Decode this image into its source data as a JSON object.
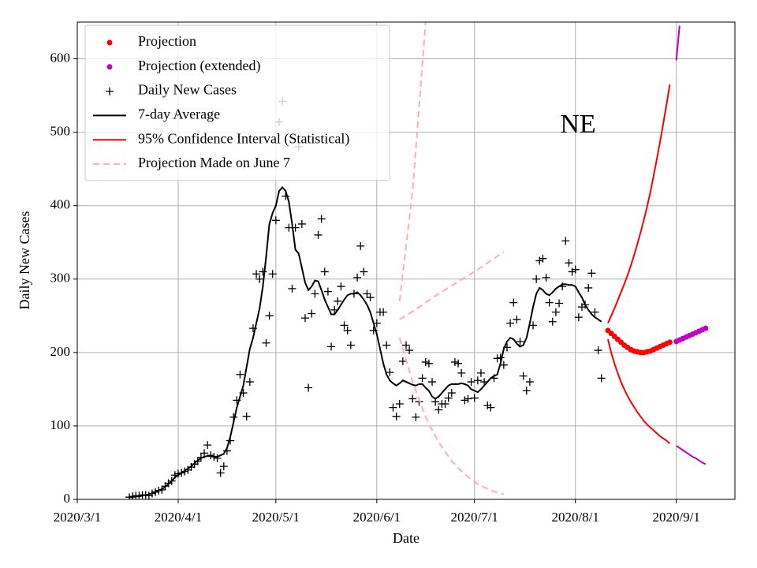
{
  "chart_data": {
    "type": "line",
    "title": "NE",
    "xlabel": "Date",
    "ylabel": "Daily New Cases",
    "xlim": [
      "2020-03-01",
      "2020-09-19"
    ],
    "ylim": [
      0,
      650
    ],
    "xticks": [
      {
        "value": "2020-03-01",
        "label": "2020/3/1"
      },
      {
        "value": "2020-04-01",
        "label": "2020/4/1"
      },
      {
        "value": "2020-05-01",
        "label": "2020/5/1"
      },
      {
        "value": "2020-06-01",
        "label": "2020/6/1"
      },
      {
        "value": "2020-07-01",
        "label": "2020/7/1"
      },
      {
        "value": "2020-08-01",
        "label": "2020/8/1"
      },
      {
        "value": "2020-09-01",
        "label": "2020/9/1"
      }
    ],
    "yticks": [
      0,
      100,
      200,
      300,
      400,
      500,
      600
    ],
    "grid": true,
    "legend": "upper left",
    "x": [
      "2020-03-17",
      "2020-03-18",
      "2020-03-19",
      "2020-03-20",
      "2020-03-21",
      "2020-03-22",
      "2020-03-23",
      "2020-03-24",
      "2020-03-25",
      "2020-03-26",
      "2020-03-27",
      "2020-03-28",
      "2020-03-29",
      "2020-03-30",
      "2020-03-31",
      "2020-04-01",
      "2020-04-02",
      "2020-04-03",
      "2020-04-04",
      "2020-04-05",
      "2020-04-06",
      "2020-04-07",
      "2020-04-08",
      "2020-04-09",
      "2020-04-10",
      "2020-04-11",
      "2020-04-12",
      "2020-04-13",
      "2020-04-14",
      "2020-04-15",
      "2020-04-16",
      "2020-04-17",
      "2020-04-18",
      "2020-04-19",
      "2020-04-20",
      "2020-04-21",
      "2020-04-22",
      "2020-04-23",
      "2020-04-24",
      "2020-04-25",
      "2020-04-26",
      "2020-04-27",
      "2020-04-28",
      "2020-04-29",
      "2020-04-30",
      "2020-05-01",
      "2020-05-02",
      "2020-05-03",
      "2020-05-04",
      "2020-05-05",
      "2020-05-06",
      "2020-05-07",
      "2020-05-08",
      "2020-05-09",
      "2020-05-10",
      "2020-05-11",
      "2020-05-12",
      "2020-05-13",
      "2020-05-14",
      "2020-05-15",
      "2020-05-16",
      "2020-05-17",
      "2020-05-18",
      "2020-05-19",
      "2020-05-20",
      "2020-05-21",
      "2020-05-22",
      "2020-05-23",
      "2020-05-24",
      "2020-05-25",
      "2020-05-26",
      "2020-05-27",
      "2020-05-28",
      "2020-05-29",
      "2020-05-30",
      "2020-05-31",
      "2020-06-01",
      "2020-06-02",
      "2020-06-03",
      "2020-06-04",
      "2020-06-05",
      "2020-06-06",
      "2020-06-07",
      "2020-06-08",
      "2020-06-09",
      "2020-06-10",
      "2020-06-11",
      "2020-06-12",
      "2020-06-13",
      "2020-06-14",
      "2020-06-15",
      "2020-06-16",
      "2020-06-17",
      "2020-06-18",
      "2020-06-19",
      "2020-06-20",
      "2020-06-21",
      "2020-06-22",
      "2020-06-23",
      "2020-06-24",
      "2020-06-25",
      "2020-06-26",
      "2020-06-27",
      "2020-06-28",
      "2020-06-29",
      "2020-06-30",
      "2020-07-01",
      "2020-07-02",
      "2020-07-03",
      "2020-07-04",
      "2020-07-05",
      "2020-07-06",
      "2020-07-07",
      "2020-07-08",
      "2020-07-09",
      "2020-07-10",
      "2020-07-11",
      "2020-07-12",
      "2020-07-13",
      "2020-07-14",
      "2020-07-15",
      "2020-07-16",
      "2020-07-17",
      "2020-07-18",
      "2020-07-19",
      "2020-07-20",
      "2020-07-21",
      "2020-07-22",
      "2020-07-23",
      "2020-07-24",
      "2020-07-25",
      "2020-07-26",
      "2020-07-27",
      "2020-07-28",
      "2020-07-29",
      "2020-07-30",
      "2020-07-31",
      "2020-08-01",
      "2020-08-02",
      "2020-08-03",
      "2020-08-04",
      "2020-08-05",
      "2020-08-06",
      "2020-08-07",
      "2020-08-08",
      "2020-08-09"
    ],
    "series": [
      {
        "name": "Projection",
        "color": "#ff0000",
        "marker": "dot",
        "x": [
          "2020-08-11",
          "2020-08-12",
          "2020-08-13",
          "2020-08-14",
          "2020-08-15",
          "2020-08-16",
          "2020-08-17",
          "2020-08-18",
          "2020-08-19",
          "2020-08-20",
          "2020-08-21",
          "2020-08-22",
          "2020-08-23",
          "2020-08-24",
          "2020-08-25",
          "2020-08-26",
          "2020-08-27",
          "2020-08-28",
          "2020-08-29",
          "2020-08-30"
        ],
        "values": [
          230,
          226,
          222,
          218,
          214,
          210,
          207,
          204,
          202,
          201,
          200,
          200,
          201,
          202,
          204,
          206,
          208,
          210,
          212,
          214
        ]
      },
      {
        "name": "Projection (extended)",
        "color": "#bf00bf",
        "marker": "dot",
        "linestyle": "solid",
        "x": [
          "2020-09-01",
          "2020-09-02",
          "2020-09-03",
          "2020-09-04",
          "2020-09-05",
          "2020-09-06",
          "2020-09-07",
          "2020-09-08",
          "2020-09-09",
          "2020-09-10"
        ],
        "values": [
          215,
          217,
          219,
          221,
          223,
          225,
          227,
          229,
          231,
          233
        ],
        "upper": [
          598,
          645,
          null,
          null,
          null,
          null,
          null,
          null,
          null,
          null
        ],
        "lower": [
          73,
          70,
          67,
          64,
          61,
          58,
          56,
          53,
          50,
          48
        ]
      },
      {
        "name": "Daily New Cases",
        "color": "#000000",
        "marker": "plus",
        "values": [
          3,
          4,
          5,
          5,
          6,
          6,
          5,
          8,
          10,
          12,
          13,
          18,
          22,
          25,
          33,
          35,
          36,
          38,
          40,
          44,
          48,
          52,
          57,
          63,
          74,
          60,
          58,
          56,
          36,
          45,
          66,
          80,
          112,
          135,
          170,
          145,
          113,
          160,
          233,
          307,
          300,
          310,
          213,
          250,
          307,
          380,
          514,
          542,
          413,
          370,
          287,
          370,
          480,
          375,
          247,
          152,
          253,
          280,
          360,
          382,
          310,
          283,
          208,
          258,
          270,
          290,
          237,
          230,
          210,
          280,
          302,
          345,
          310,
          280,
          275,
          230,
          240,
          255,
          255,
          210,
          173,
          125,
          113,
          130,
          188,
          210,
          203,
          137,
          112,
          133,
          165,
          187,
          185,
          160,
          133,
          122,
          130,
          130,
          138,
          145,
          187,
          185,
          172,
          135,
          137,
          160,
          138,
          162,
          172,
          160,
          128,
          125,
          165,
          192,
          193,
          183,
          207,
          240,
          268,
          245,
          215,
          168,
          148,
          160,
          237,
          300,
          325,
          328,
          302,
          268,
          242,
          255,
          267,
          290,
          352,
          322,
          310,
          313,
          248,
          262,
          265,
          288,
          308,
          255,
          203,
          165
        ]
      },
      {
        "name": "7-day Average",
        "color": "#000000",
        "linestyle": "solid",
        "values": [
          3,
          3,
          4,
          4,
          5,
          6,
          7,
          8,
          10,
          12,
          14,
          17,
          21,
          25,
          30,
          33,
          36,
          39,
          42,
          45,
          49,
          53,
          56,
          58,
          59,
          59,
          58,
          58,
          60,
          62,
          70,
          85,
          105,
          125,
          140,
          155,
          180,
          205,
          220,
          240,
          260,
          290,
          330,
          375,
          390,
          400,
          420,
          425,
          420,
          405,
          375,
          340,
          335,
          315,
          295,
          285,
          290,
          298,
          297,
          285,
          272,
          262,
          252,
          252,
          258,
          265,
          272,
          278,
          280,
          280,
          282,
          278,
          272,
          265,
          255,
          240,
          225,
          205,
          185,
          170,
          162,
          158,
          155,
          158,
          162,
          160,
          158,
          156,
          155,
          157,
          157,
          152,
          148,
          140,
          137,
          140,
          145,
          150,
          155,
          157,
          157,
          157,
          158,
          157,
          155,
          150,
          148,
          146,
          150,
          155,
          160,
          165,
          168,
          170,
          185,
          205,
          215,
          220,
          218,
          212,
          208,
          210,
          220,
          240,
          262,
          280,
          288,
          285,
          280,
          278,
          282,
          287,
          290,
          293,
          293,
          292,
          292,
          290,
          282,
          275,
          265,
          258,
          252,
          248,
          245,
          242
        ]
      },
      {
        "name": "95% Confidence Interval (Statistical)",
        "color": "#ff0000",
        "linestyle": "solid",
        "x": [
          "2020-08-11",
          "2020-08-12",
          "2020-08-13",
          "2020-08-14",
          "2020-08-15",
          "2020-08-16",
          "2020-08-17",
          "2020-08-18",
          "2020-08-19",
          "2020-08-20",
          "2020-08-21",
          "2020-08-22",
          "2020-08-23",
          "2020-08-24",
          "2020-08-25",
          "2020-08-26",
          "2020-08-27",
          "2020-08-28",
          "2020-08-29",
          "2020-08-30"
        ],
        "upper": [
          240,
          250,
          260,
          271,
          282,
          293,
          305,
          318,
          332,
          347,
          363,
          380,
          398,
          418,
          440,
          463,
          487,
          512,
          538,
          565
        ],
        "lower": [
          218,
          200,
          185,
          172,
          160,
          150,
          141,
          133,
          126,
          119,
          113,
          107,
          102,
          98,
          94,
          90,
          86,
          83,
          80,
          76
        ]
      },
      {
        "name": "Projection Made on June 7",
        "color": "#ffb0b0",
        "linestyle": "dashed",
        "x": [
          "2020-06-08",
          "2020-06-12",
          "2020-06-16",
          "2020-06-20",
          "2020-06-24",
          "2020-06-28",
          "2020-07-02",
          "2020-07-06",
          "2020-07-10"
        ],
        "values": [
          245,
          256,
          268,
          280,
          291,
          302,
          313,
          325,
          337
        ],
        "upper": [
          270,
          420,
          650,
          null,
          null,
          null,
          null,
          null,
          null
        ],
        "lower": [
          220,
          160,
          112,
          78,
          52,
          34,
          21,
          12,
          7
        ]
      }
    ]
  }
}
